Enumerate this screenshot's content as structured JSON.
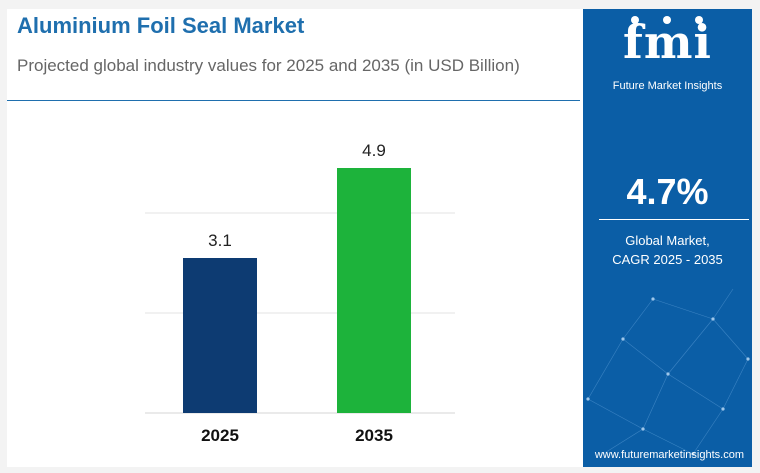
{
  "colors": {
    "brand_blue": "#1f6fae",
    "panel_blue": "#0b5ea6",
    "bar_2025": "#0d3b72",
    "bar_2035": "#1db33b"
  },
  "panel": {
    "logo": "fmi",
    "logo_subtitle": "Future Market Insights",
    "cagr_value": "4.7%",
    "cagr_line1": "Global Market,",
    "cagr_line2": "CAGR 2025 - 2035",
    "website": "www.futuremarketinsights.com"
  },
  "chart_data": {
    "type": "bar",
    "title": "Aluminium Foil Seal Market",
    "subtitle": "Projected global industry values for 2025 and 2035 (in USD Billion)",
    "categories": [
      "2025",
      "2035"
    ],
    "values": [
      3.1,
      4.9
    ],
    "value_labels": [
      "3.1",
      "4.9"
    ],
    "bar_colors": [
      "#0d3b72",
      "#1db33b"
    ],
    "ylim": [
      0,
      6
    ],
    "grid": true,
    "xlabel": "",
    "ylabel": ""
  }
}
